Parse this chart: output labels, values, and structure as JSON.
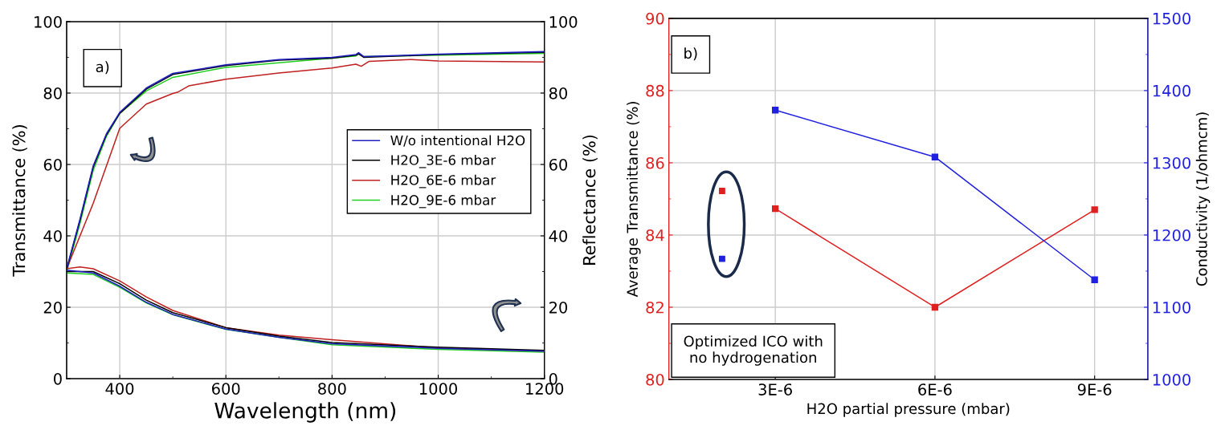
{
  "chart_data": [
    {
      "type": "line",
      "xlabel": "Wavelength (nm)",
      "ylabel": "Transmittance (%)",
      "y2label": "Reflectance (%)",
      "xlim": [
        300,
        1200
      ],
      "xticks": [
        400,
        {
          "value": 500,
          "label": null
        },
        600,
        {
          "value": 700,
          "label": null
        },
        800,
        {
          "value": 900,
          "label": null
        },
        1000,
        {
          "value": 1100,
          "label": null
        },
        1200
      ],
      "ylim": [
        0,
        100
      ],
      "yticks": [
        0,
        {
          "value": 10,
          "label": null
        },
        20,
        {
          "value": 30,
          "label": null
        },
        40,
        {
          "value": 50,
          "label": null
        },
        60,
        {
          "value": 70,
          "label": null
        },
        80,
        {
          "value": 90,
          "label": null
        },
        100
      ],
      "y2lim": [
        0,
        100
      ],
      "y2ticks": [
        0,
        {
          "value": 10,
          "label": null
        },
        20,
        {
          "value": 30,
          "label": null
        },
        40,
        {
          "value": 50,
          "label": null
        },
        60,
        {
          "value": 70,
          "label": null
        },
        80,
        {
          "value": 90,
          "label": null
        },
        100
      ],
      "grid": true,
      "legend": "center right",
      "marker": "none",
      "line_style": "solid",
      "annotations": [
        "a)"
      ],
      "series": [
        {
          "name": "W/o intentional H2O",
          "color": "#2020c0",
          "x": [
            300,
            325,
            350,
            375,
            400,
            450,
            500,
            600,
            700,
            800,
            845,
            850,
            860,
            1000,
            1200
          ],
          "values": [
            30.8,
            44.6,
            59.6,
            68.6,
            74.6,
            81.4,
            85.5,
            87.9,
            89.4,
            90.0,
            90.8,
            91.3,
            90.2,
            90.9,
            91.6
          ]
        },
        {
          "name": "H2O_3E-6 mbar",
          "color": "#000000",
          "x": [
            300,
            325,
            350,
            375,
            400,
            450,
            500,
            600,
            700,
            800,
            845,
            850,
            860,
            1000,
            1200
          ],
          "values": [
            30.6,
            44.2,
            59.2,
            68.3,
            74.3,
            81.1,
            85.2,
            87.7,
            89.2,
            89.8,
            90.6,
            91.0,
            90.0,
            90.8,
            91.4
          ]
        },
        {
          "name": "H2O_6E-6 mbar",
          "color": "#c02020",
          "x": [
            300,
            350,
            400,
            450,
            500,
            510,
            530,
            600,
            700,
            800,
            845,
            855,
            870,
            950,
            1000,
            1200
          ],
          "values": [
            30.8,
            49.1,
            70.1,
            76.9,
            79.9,
            80.3,
            82.0,
            83.9,
            85.6,
            87.0,
            88.1,
            87.5,
            88.9,
            89.4,
            89.0,
            88.7
          ]
        },
        {
          "name": "H2O_9E-6 mbar",
          "color": "#20d020",
          "x": [
            300,
            325,
            350,
            375,
            400,
            450,
            500,
            600,
            700,
            800,
            845,
            850,
            860,
            1000,
            1200
          ],
          "values": [
            29.9,
            43.4,
            58.3,
            67.9,
            74.3,
            80.6,
            84.4,
            87.2,
            88.5,
            89.8,
            90.4,
            91.0,
            90.2,
            90.6,
            91.1
          ]
        },
        {
          "color": "#2020c0",
          "axis": "y2",
          "x": [
            300,
            350,
            400,
            450,
            500,
            600,
            700,
            800,
            1000,
            1200
          ],
          "values": [
            30.4,
            29.6,
            25.9,
            21.4,
            18.0,
            13.9,
            11.6,
            9.8,
            8.5,
            7.7
          ]
        },
        {
          "color": "#000000",
          "axis": "y2",
          "x": [
            300,
            350,
            400,
            450,
            500,
            600,
            700,
            800,
            1000,
            1200
          ],
          "values": [
            30.0,
            30.0,
            26.6,
            22.0,
            18.5,
            14.3,
            11.9,
            10.1,
            8.8,
            7.9
          ]
        },
        {
          "color": "#c02020",
          "axis": "y2",
          "x": [
            300,
            325,
            350,
            400,
            450,
            500,
            600,
            700,
            800,
            1000,
            1200
          ],
          "values": [
            30.8,
            31.3,
            30.8,
            27.4,
            22.9,
            19.1,
            14.3,
            12.2,
            10.9,
            8.6,
            7.7
          ]
        },
        {
          "color": "#20d020",
          "axis": "y2",
          "x": [
            300,
            350,
            400,
            450,
            500,
            600,
            700,
            800,
            1000,
            1200
          ],
          "values": [
            29.6,
            29.2,
            25.6,
            21.2,
            17.9,
            13.8,
            11.6,
            9.5,
            8.2,
            7.4
          ]
        }
      ]
    },
    {
      "type": "line",
      "xlabel": "H2O partial pressure (mbar)",
      "ylabel": "Average Transmittance (%)",
      "y2label": "Conductivity (1/ohmcm)",
      "xlim": [
        1e-06,
        1e-05
      ],
      "xticks": [
        {
          "value": 3e-06,
          "label": "3E-6"
        },
        {
          "value": 6e-06,
          "label": "6E-6"
        },
        {
          "value": 9e-06,
          "label": "9E-6"
        }
      ],
      "ylim": [
        80,
        90
      ],
      "yticks": [
        80,
        {
          "value": 81,
          "label": null
        },
        82,
        {
          "value": 83,
          "label": null
        },
        84,
        {
          "value": 85,
          "label": null
        },
        86,
        {
          "value": 87,
          "label": null
        },
        88,
        {
          "value": 89,
          "label": null
        },
        90
      ],
      "y2lim": [
        1000,
        1500
      ],
      "y2ticks": [
        1000,
        {
          "value": 1050,
          "label": null
        },
        1100,
        {
          "value": 1150,
          "label": null
        },
        1200,
        {
          "value": 1250,
          "label": null
        },
        1300,
        {
          "value": 1350,
          "label": null
        },
        1400,
        {
          "value": 1450,
          "label": null
        },
        1500
      ],
      "grid": true,
      "annotations": [
        "b)",
        "Optimized ICO with\nno hydrogenation"
      ],
      "series": [
        {
          "color": "#e02020",
          "marker": "square",
          "x": [
            3e-06,
            6e-06,
            9e-06
          ],
          "values": [
            84.73,
            82.0,
            84.7
          ]
        },
        {
          "color": "#2020e0",
          "marker": "square",
          "axis": "y2",
          "x": [
            3e-06,
            6e-06,
            9e-06
          ],
          "values": [
            1373,
            1308,
            1138
          ]
        },
        {
          "type": "scatter",
          "color": "#e02020",
          "marker": "square",
          "x": [
            2e-06
          ],
          "values": [
            85.22
          ]
        },
        {
          "type": "scatter",
          "color": "#2020e0",
          "marker": "square",
          "axis": "y2",
          "x": [
            2e-06
          ],
          "values": [
            1167
          ]
        }
      ]
    }
  ]
}
